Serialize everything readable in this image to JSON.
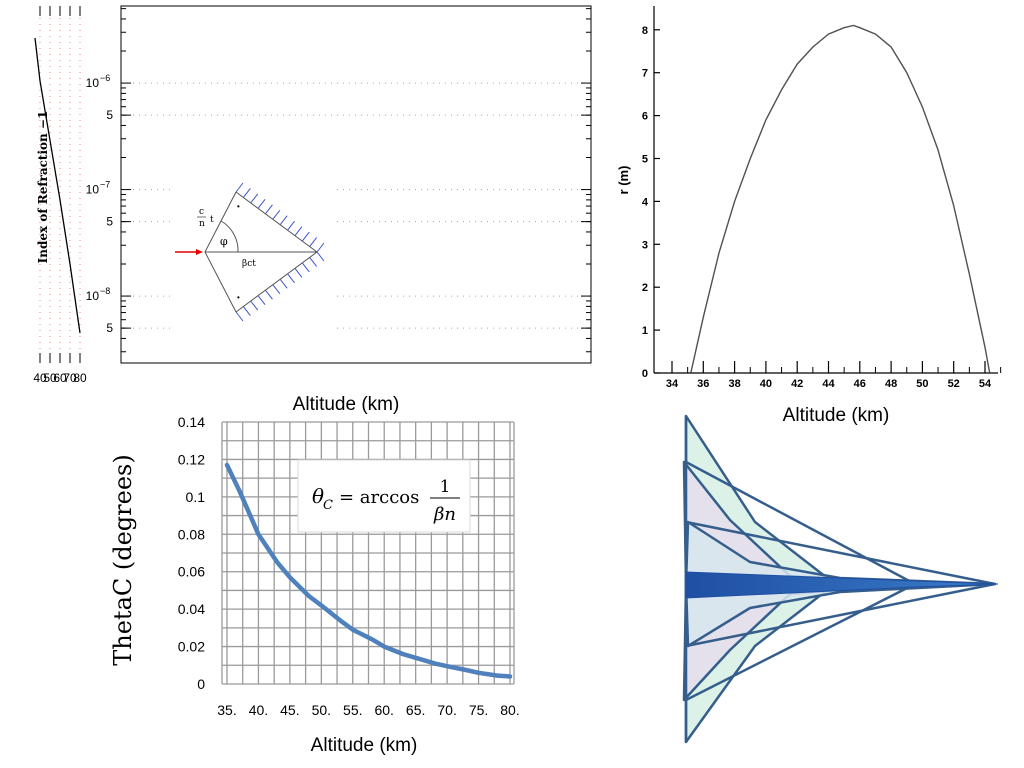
{
  "chart_data": [
    {
      "type": "line",
      "xlabel": "Altitude (km)",
      "ylabel": "Index of Refraction −1",
      "xlim": [
        30,
        85
      ],
      "yscale": "log",
      "ylim": [
        2.8e-09,
        4e-06
      ],
      "x_ticks": [
        "40",
        "50",
        "60",
        "70",
        "80"
      ],
      "y_ticks": [
        {
          "value": 1e-06,
          "label": "10",
          "exp": "−6"
        },
        {
          "value": 5e-07,
          "label": "5"
        },
        {
          "value": 1e-07,
          "label": "10",
          "exp": "−7"
        },
        {
          "value": 5e-08,
          "label": "5"
        },
        {
          "value": 1e-08,
          "label": "10",
          "exp": "−8"
        },
        {
          "value": 5e-09,
          "label": "5"
        }
      ],
      "grid": true,
      "series": [
        {
          "x": [
            35,
            40,
            50,
            60,
            70,
            80
          ],
          "y": [
            2.65e-06,
            1.05e-06,
            2.9e-07,
            8e-08,
            2e-08,
            4.5e-09
          ]
        }
      ],
      "inset": {
        "labels": {
          "c_over_n": "c",
          "n": "n",
          "t": "t",
          "phi": "φ",
          "beta_ct": "βct"
        }
      }
    },
    {
      "type": "line",
      "xlabel": "Altitude (km)",
      "ylabel": "r (m)",
      "xlim": [
        33,
        55
      ],
      "ylim": [
        0,
        8.5
      ],
      "x_ticks": [
        34,
        36,
        38,
        40,
        42,
        44,
        46,
        48,
        50,
        52,
        54
      ],
      "y_ticks": [
        0,
        1,
        2,
        3,
        4,
        5,
        6,
        7,
        8
      ],
      "grid": false,
      "series": [
        {
          "x": [
            35.2,
            36,
            37,
            38,
            39,
            40,
            41,
            42,
            43,
            44,
            45,
            45.6,
            46,
            47,
            48,
            49,
            50,
            51,
            52,
            53,
            54,
            54.3
          ],
          "y": [
            0,
            1.3,
            2.8,
            4.0,
            5.0,
            5.9,
            6.6,
            7.2,
            7.6,
            7.9,
            8.05,
            8.1,
            8.05,
            7.9,
            7.6,
            7.0,
            6.2,
            5.2,
            3.9,
            2.3,
            0.6,
            0
          ]
        }
      ]
    },
    {
      "type": "line",
      "xlabel": "Altitude (km)",
      "ylabel": "ThetaC (degrees)",
      "xlim": [
        34.5,
        80.5
      ],
      "ylim": [
        0,
        0.14
      ],
      "x_ticks": [
        "35.",
        "40.",
        "45.",
        "50.",
        "55.",
        "60.",
        "65.",
        "70.",
        "75.",
        "80."
      ],
      "y_ticks": [
        "0",
        "0.02",
        "0.04",
        "0.06",
        "0.08",
        "0.1",
        "0.12",
        "0.14"
      ],
      "grid": true,
      "formula": {
        "lhs": "θ",
        "sub": "C",
        "eq": "= arccos",
        "num": "1",
        "den": "βn"
      },
      "series": [
        {
          "color": "#4f81bd",
          "x": [
            35,
            37,
            40,
            43,
            45,
            48,
            50,
            53,
            55,
            58,
            60,
            63,
            65,
            68,
            70,
            73,
            75,
            78,
            80
          ],
          "y": [
            0.117,
            0.103,
            0.08,
            0.065,
            0.057,
            0.047,
            0.042,
            0.034,
            0.029,
            0.024,
            0.02,
            0.016,
            0.014,
            0.011,
            0.0095,
            0.0075,
            0.006,
            0.0045,
            0.004
          ]
        }
      ]
    }
  ]
}
